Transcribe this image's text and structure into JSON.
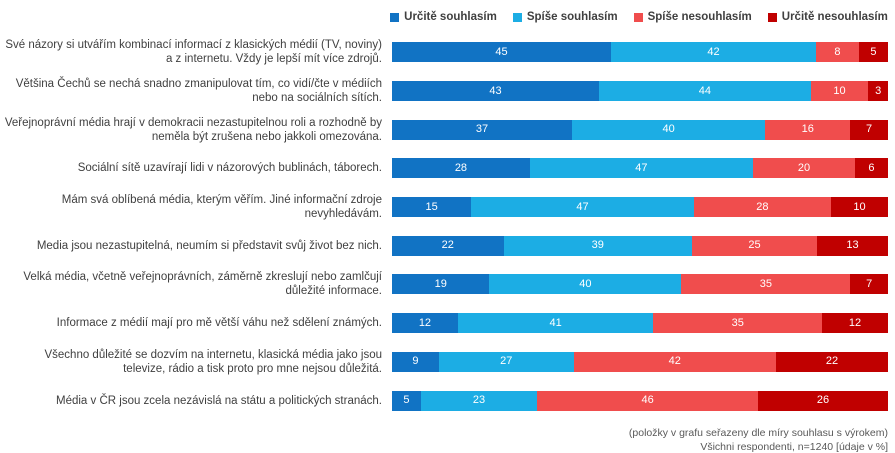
{
  "chart_data": {
    "type": "bar",
    "stacked": true,
    "orientation": "horizontal",
    "unit": "percent",
    "values_shown_in_segments": true,
    "legend_position": "top",
    "grid": false,
    "categories": [
      "Své názory si utvářím kombinací informací z klasických médií (TV, noviny) a z internetu. Vždy je lepší mít více zdrojů.",
      "Většina Čechů se nechá snadno zmanipulovat tím, co vidí/čte v médiích nebo na sociálních sítích.",
      "Veřejnoprávní média hrají v demokracii nezastupitelnou roli a rozhodně by neměla být zrušena nebo jakkoli omezována.",
      "Sociální sítě uzavírají lidi v názorových bublinách, táborech.",
      "Mám svá oblíbená média, kterým věřím. Jiné informační zdroje nevyhledávám.",
      "Media jsou nezastupitelná, neumím si představit svůj život bez nich.",
      "Velká média, včetně veřejnoprávních, záměrně zkreslují nebo zamlčují důležité informace.",
      "Informace z médií mají pro mě větší váhu než sdělení známých.",
      "Všechno důležité se dozvím na internetu, klasická média jako jsou televize, rádio a tisk proto pro mne nejsou důležitá.",
      "Média v ČR jsou zcela nezávislá na státu a politických stranách."
    ],
    "series": [
      {
        "name": "Určitě souhlasím",
        "color": "#1173C4",
        "values": [
          45,
          43,
          37,
          28,
          15,
          22,
          19,
          12,
          9,
          5
        ]
      },
      {
        "name": "Spíše souhlasím",
        "color": "#1CADE4",
        "values": [
          42,
          44,
          40,
          47,
          47,
          39,
          40,
          41,
          27,
          23
        ]
      },
      {
        "name": "Spíše nesouhlasím",
        "color": "#F04D4D",
        "values": [
          8,
          10,
          16,
          20,
          28,
          25,
          35,
          35,
          42,
          46
        ]
      },
      {
        "name": "Určitě nesouhlasím",
        "color": "#C00000",
        "values": [
          5,
          3,
          7,
          6,
          10,
          13,
          7,
          12,
          22,
          26
        ]
      }
    ],
    "footnotes": [
      "(položky v grafu seřazeny dle míry souhlasu s výrokem)",
      "Všichni respondenti, n=1240 [údaje v %]"
    ]
  }
}
